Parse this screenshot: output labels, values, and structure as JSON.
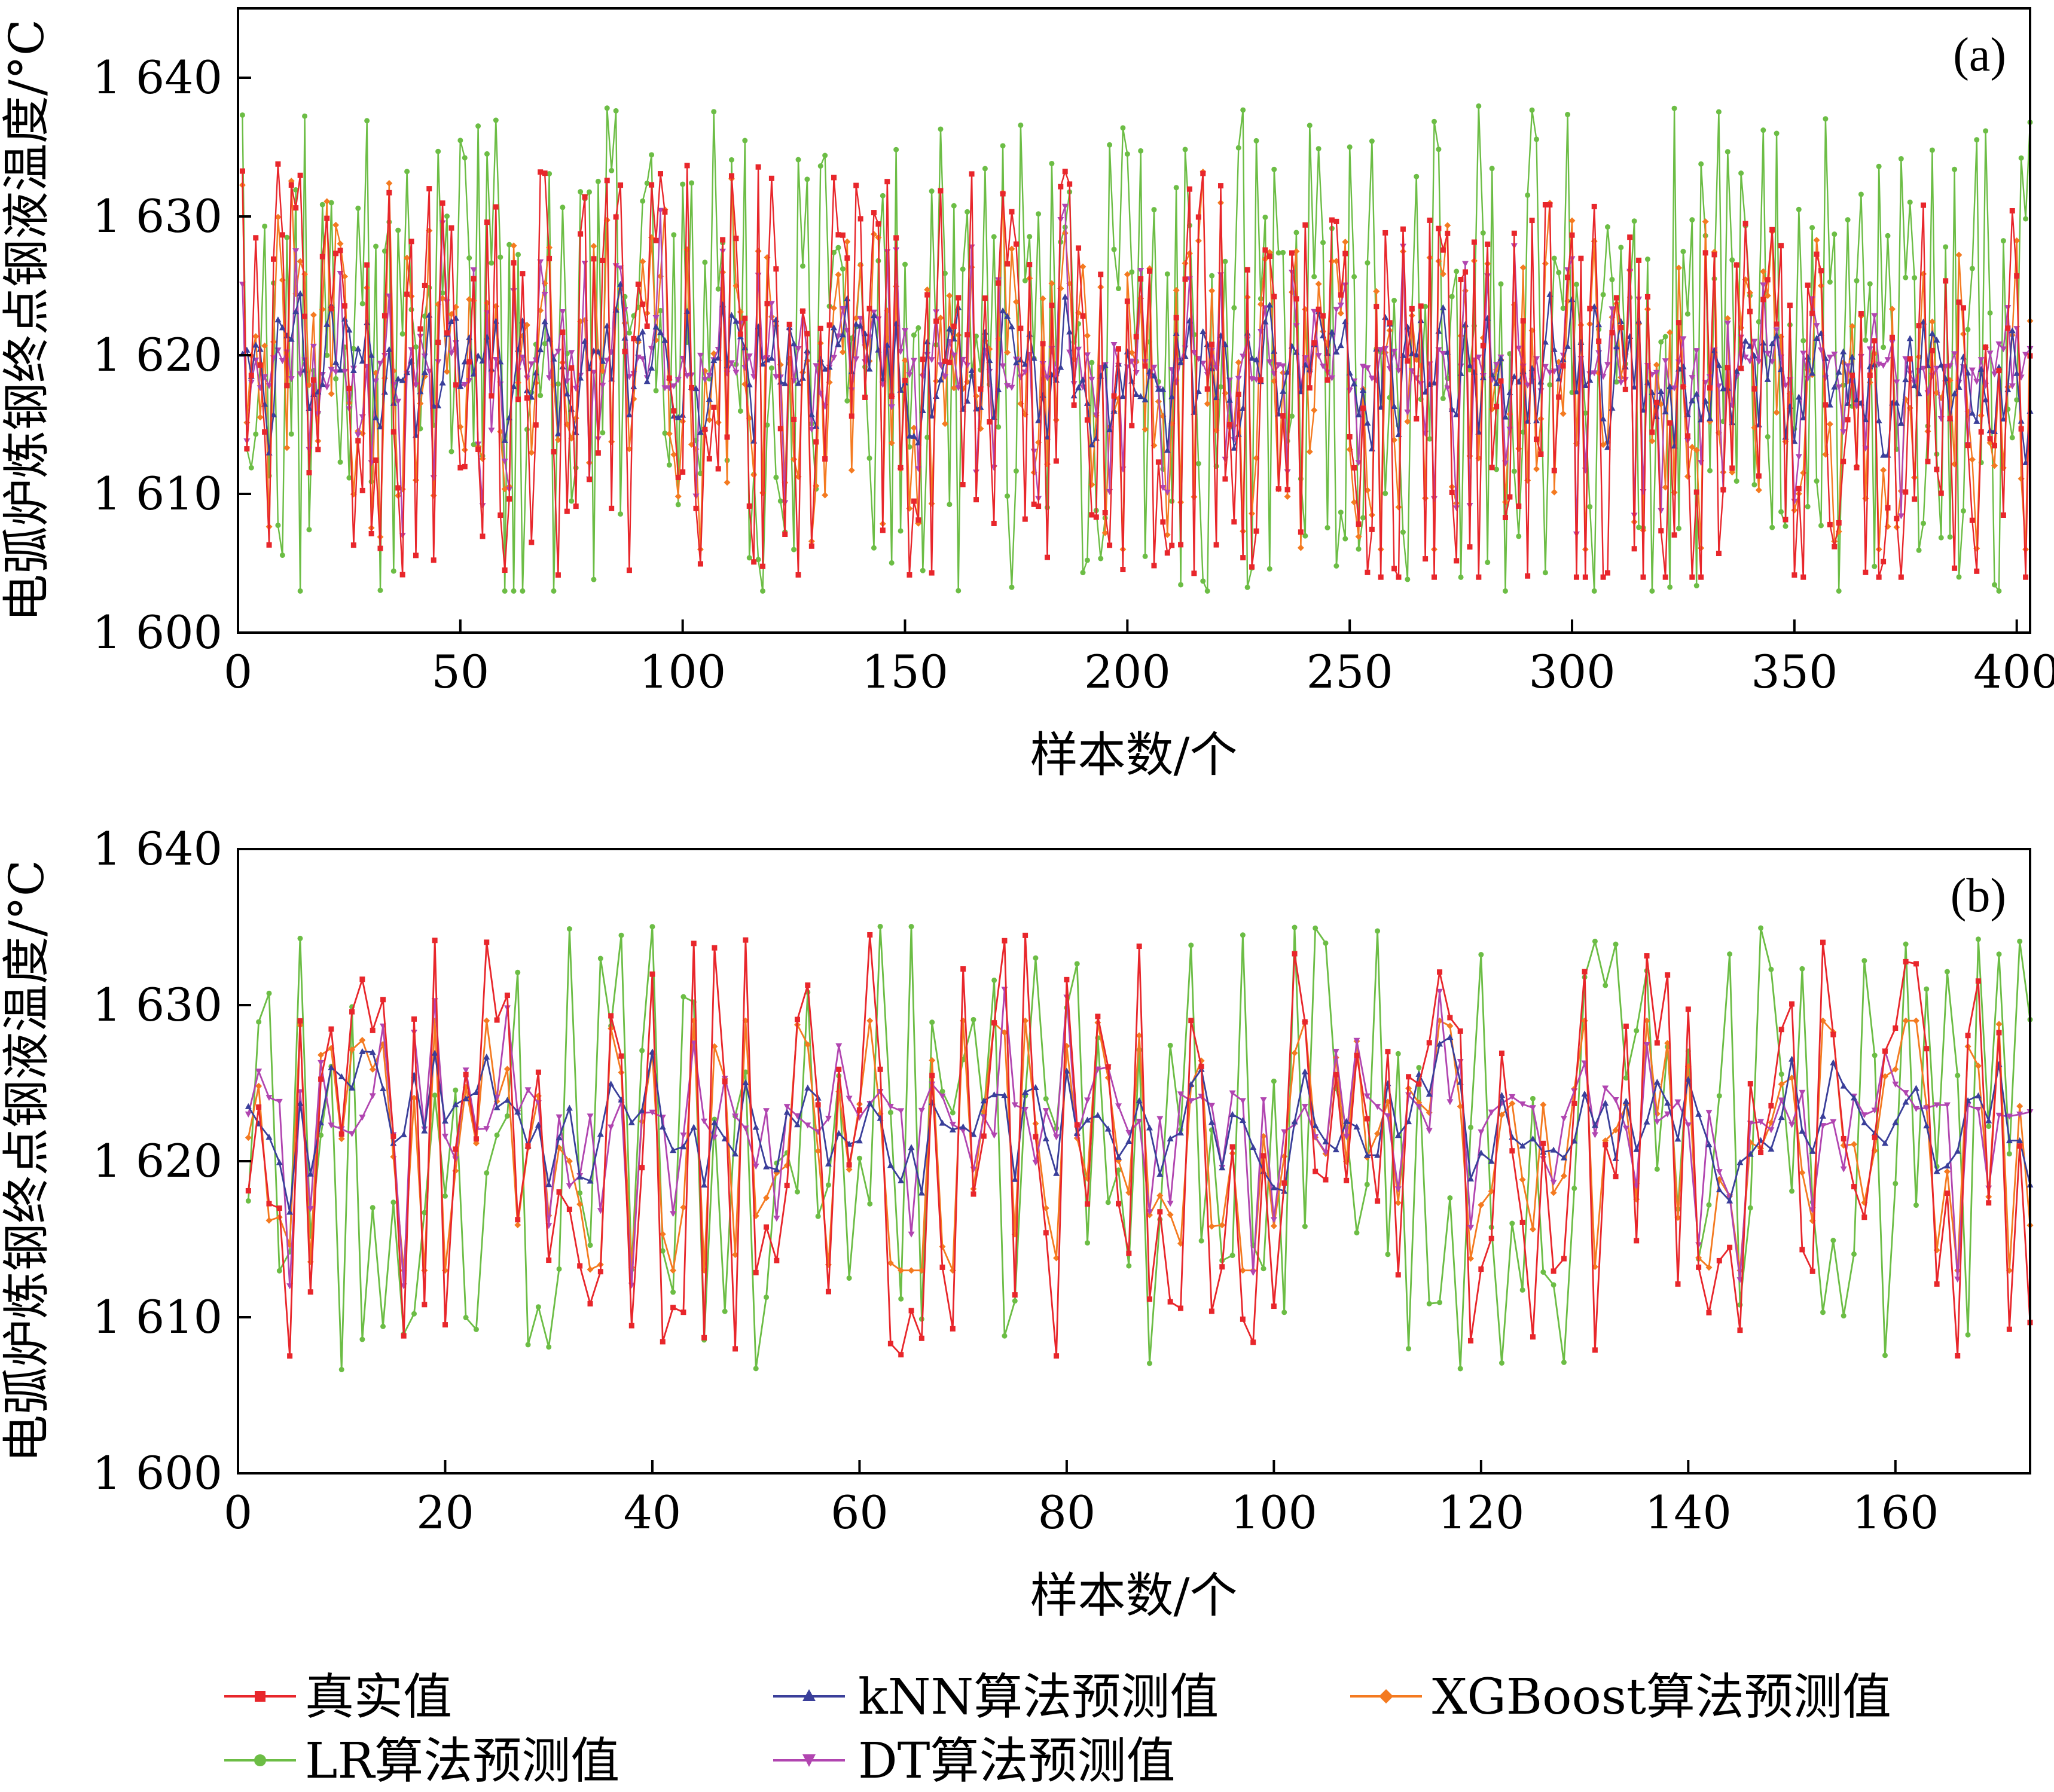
{
  "colors": {
    "true": "#e8262b",
    "lr": "#6cbd45",
    "knn": "#3a3f9a",
    "dt": "#b145b0",
    "xgb": "#f47a20"
  },
  "legend": [
    {
      "key": "true",
      "label": "真实值",
      "marker": "square"
    },
    {
      "key": "knn",
      "label": "kNN算法预测值",
      "marker": "triangle-up"
    },
    {
      "key": "xgb",
      "label": "XGBoost算法预测值",
      "marker": "diamond"
    },
    {
      "key": "lr",
      "label": "LR算法预测值",
      "marker": "circle"
    },
    {
      "key": "dt",
      "label": "DT算法预测值",
      "marker": "triangle-down"
    }
  ],
  "chart_data": [
    {
      "type": "line",
      "panel_label": "(a)",
      "xlabel": "样本数/个",
      "ylabel": "电弧炉炼钢终点钢液温度/°C",
      "xlim": [
        0,
        403
      ],
      "ylim": [
        1600,
        1645
      ],
      "xticks": [
        0,
        50,
        100,
        150,
        200,
        250,
        300,
        350,
        400
      ],
      "xtick_labels": [
        "0",
        "50",
        "100",
        "150",
        "200",
        "250",
        "300",
        "350",
        "400"
      ],
      "yticks": [
        1600,
        1610,
        1620,
        1630,
        1640
      ],
      "ytick_labels": [
        "1 600",
        "1 610",
        "1 620",
        "1 630",
        "1 640"
      ],
      "n_samples": 403,
      "series_note": "Five series per sample: true value (真实值) and predictions by LR, kNN, DT, XGBoost; values fluctuate roughly between 1604 and 1643 °C",
      "series": [
        {
          "key": "true",
          "name": "真实值",
          "min": 1604,
          "max": 1639,
          "mean": 1619
        },
        {
          "key": "lr",
          "name": "LR算法预测值",
          "min": 1603,
          "max": 1643,
          "mean": 1620
        },
        {
          "key": "knn",
          "name": "kNN算法预测值",
          "min": 1611,
          "max": 1627,
          "mean": 1619
        },
        {
          "key": "dt",
          "name": "DT算法预测值",
          "min": 1607,
          "max": 1631,
          "mean": 1619
        },
        {
          "key": "xgb",
          "name": "XGBoost算法预测值",
          "min": 1606,
          "max": 1636,
          "mean": 1619
        }
      ]
    },
    {
      "type": "line",
      "panel_label": "(b)",
      "xlabel": "样本数/个",
      "ylabel": "电弧炉炼钢终点钢液温度/°C",
      "xlim": [
        0,
        173
      ],
      "ylim": [
        1600,
        1640
      ],
      "xticks": [
        0,
        20,
        40,
        60,
        80,
        100,
        120,
        140,
        160
      ],
      "xtick_labels": [
        "0",
        "20",
        "40",
        "60",
        "80",
        "100",
        "120",
        "140",
        "160"
      ],
      "yticks": [
        1600,
        1610,
        1620,
        1630,
        1640
      ],
      "ytick_labels": [
        "1 600",
        "1 610",
        "1 620",
        "1 630",
        "1 640"
      ],
      "n_samples": 173,
      "series_note": "Five series per sample; true values and LR predictions swing widely (~1604–1636 °C), kNN/DT/XGBoost stay near 1615–1631 °C",
      "series": [
        {
          "key": "true",
          "name": "真实值",
          "min": 1604,
          "max": 1636,
          "mean": 1621
        },
        {
          "key": "lr",
          "name": "LR算法预测值",
          "min": 1604,
          "max": 1636,
          "mean": 1621
        },
        {
          "key": "knn",
          "name": "kNN算法预测值",
          "min": 1615,
          "max": 1629,
          "mean": 1623
        },
        {
          "key": "dt",
          "name": "DT算法预测值",
          "min": 1612,
          "max": 1631,
          "mean": 1623
        },
        {
          "key": "xgb",
          "name": "XGBoost算法预测值",
          "min": 1613,
          "max": 1629,
          "mean": 1622
        }
      ]
    }
  ]
}
